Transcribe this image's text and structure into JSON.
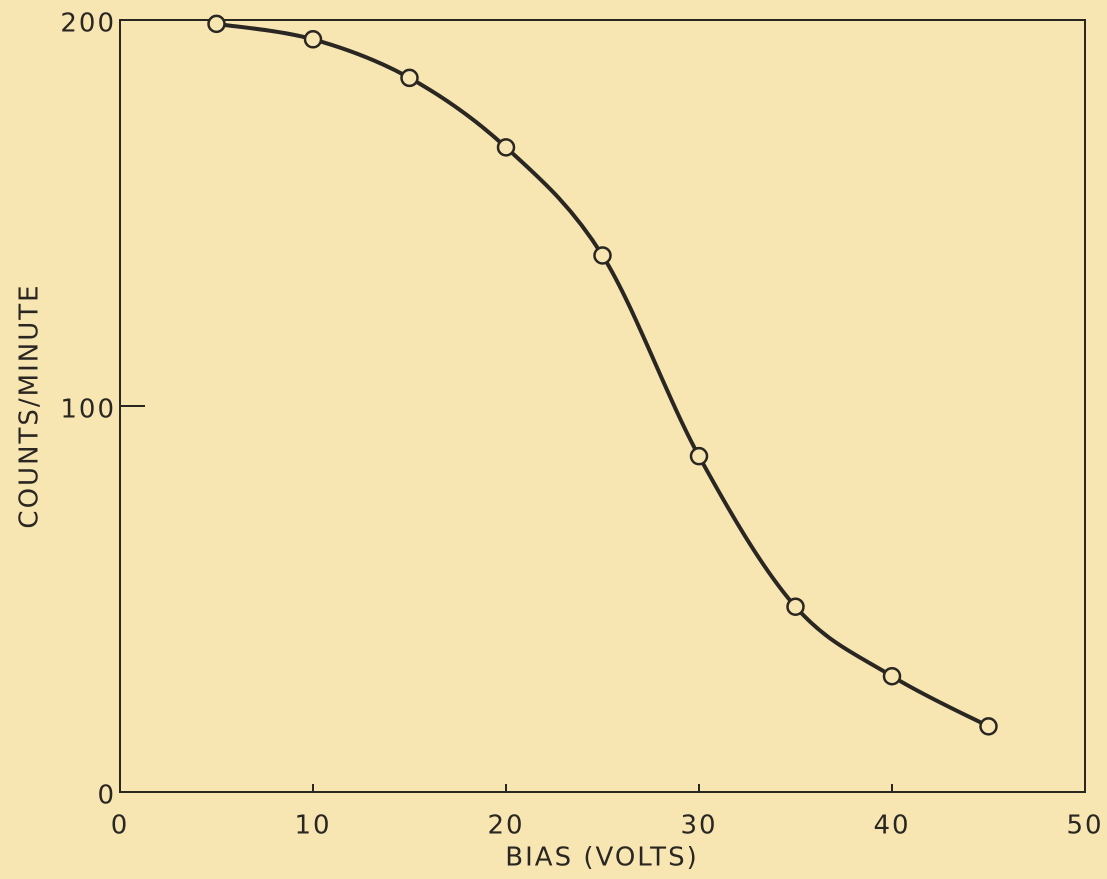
{
  "chart_data": {
    "type": "line",
    "x_label": "BIAS (VOLTS)",
    "y_label": "COUNTS/MINUTE",
    "x": [
      5,
      10,
      15,
      20,
      25,
      30,
      35,
      40,
      45
    ],
    "series": [
      {
        "color": "#2a2622",
        "values": [
          199,
          195,
          185,
          167,
          139,
          87,
          48,
          30,
          17
        ]
      }
    ],
    "xlim": [
      0,
      50
    ],
    "xticks": [
      0,
      10,
      20,
      30,
      40,
      50
    ],
    "ylim": [
      0,
      200
    ],
    "yticks": [
      0,
      100,
      200
    ],
    "markers": true,
    "grid": false
  }
}
